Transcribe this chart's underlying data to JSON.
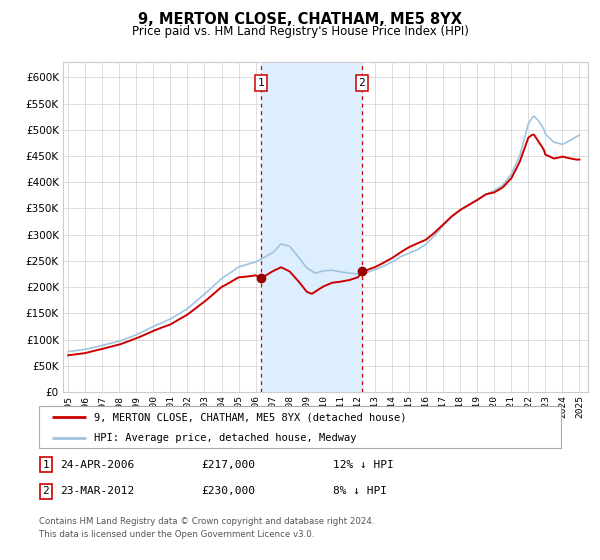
{
  "title": "9, MERTON CLOSE, CHATHAM, ME5 8YX",
  "subtitle": "Price paid vs. HM Land Registry's House Price Index (HPI)",
  "hpi_label": "HPI: Average price, detached house, Medway",
  "property_label": "9, MERTON CLOSE, CHATHAM, ME5 8YX (detached house)",
  "transaction1_date": "24-APR-2006",
  "transaction1_price": "£217,000",
  "transaction1_hpi": "12% ↓ HPI",
  "transaction2_date": "23-MAR-2012",
  "transaction2_price": "£230,000",
  "transaction2_hpi": "8% ↓ HPI",
  "footer_line1": "Contains HM Land Registry data © Crown copyright and database right 2024.",
  "footer_line2": "This data is licensed under the Open Government Licence v3.0.",
  "hpi_color": "#a0c4e0",
  "property_color": "#cc0000",
  "marker_color": "#990000",
  "transaction_x1": 2006.31,
  "transaction_x2": 2012.23,
  "transaction_y1": 217000,
  "transaction_y2": 230000,
  "shaded_region_color": "#ddeeff",
  "vline_color": "#cc0000",
  "ylim": [
    0,
    630000
  ],
  "xlim_start": 1994.7,
  "xlim_end": 2025.5,
  "yticks": [
    0,
    50000,
    100000,
    150000,
    200000,
    250000,
    300000,
    350000,
    400000,
    450000,
    500000,
    550000,
    600000
  ],
  "xticks": [
    1995,
    1996,
    1997,
    1998,
    1999,
    2000,
    2001,
    2002,
    2003,
    2004,
    2005,
    2006,
    2007,
    2008,
    2009,
    2010,
    2011,
    2012,
    2013,
    2014,
    2015,
    2016,
    2017,
    2018,
    2019,
    2020,
    2021,
    2022,
    2023,
    2024,
    2025
  ]
}
